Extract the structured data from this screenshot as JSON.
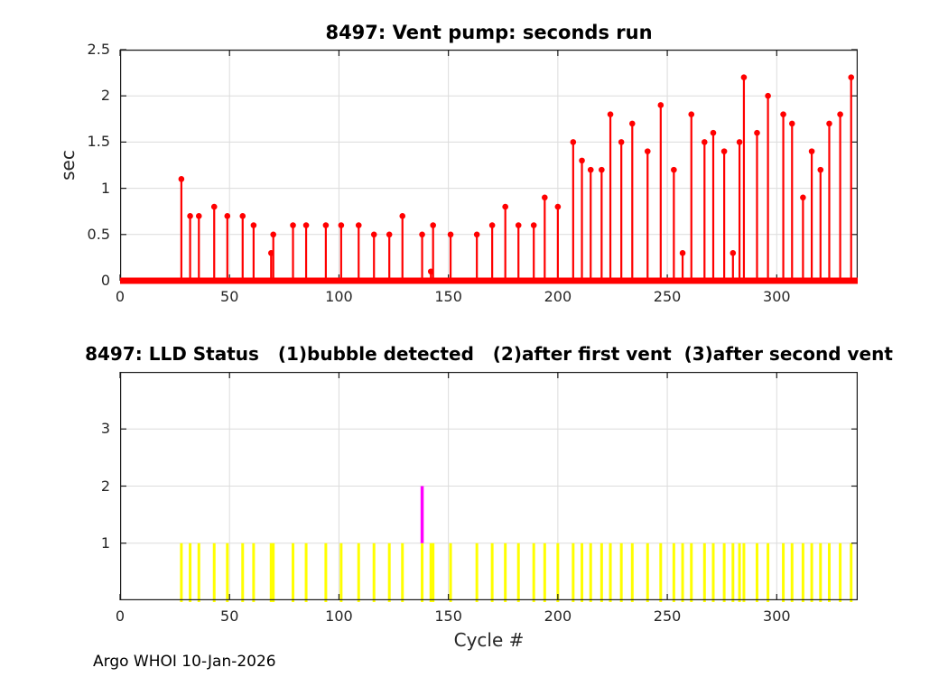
{
  "figure": {
    "background": "#ffffff",
    "footer": "Argo WHOI 10-Jan-2026"
  },
  "axis_style": {
    "box_color": "#1a1a1a",
    "tick_color": "#1a1a1a",
    "grid_color": "#dcdcdc",
    "label_color": "#262626",
    "tick_length": 7
  },
  "chart_data": [
    {
      "type": "stem",
      "title": "8497: Vent pump: seconds run",
      "ylabel": "sec",
      "xlabel": "",
      "xlim": [
        0,
        337
      ],
      "ylim": [
        0,
        2.5
      ],
      "xticks": [
        0,
        50,
        100,
        150,
        200,
        250,
        300
      ],
      "xtick_labels": [
        "0",
        "50",
        "100",
        "150",
        "200",
        "250",
        "300"
      ],
      "yticks": [
        0,
        0.5,
        1,
        1.5,
        2,
        2.5
      ],
      "ytick_labels": [
        "0",
        "0.5",
        "1",
        "1.5",
        "2",
        "2.5"
      ],
      "grid": true,
      "stem_color": "#ff0000",
      "zero_baseline": true,
      "points": [
        [
          28,
          1.1
        ],
        [
          32,
          0.7
        ],
        [
          36,
          0.7
        ],
        [
          43,
          0.8
        ],
        [
          49,
          0.7
        ],
        [
          56,
          0.7
        ],
        [
          61,
          0.6
        ],
        [
          69,
          0.3
        ],
        [
          70,
          0.5
        ],
        [
          79,
          0.6
        ],
        [
          85,
          0.6
        ],
        [
          94,
          0.6
        ],
        [
          101,
          0.6
        ],
        [
          109,
          0.6
        ],
        [
          116,
          0.5
        ],
        [
          123,
          0.5
        ],
        [
          129,
          0.7
        ],
        [
          138,
          0.5
        ],
        [
          142,
          0.1
        ],
        [
          143,
          0.6
        ],
        [
          151,
          0.5
        ],
        [
          163,
          0.5
        ],
        [
          170,
          0.6
        ],
        [
          176,
          0.8
        ],
        [
          182,
          0.6
        ],
        [
          189,
          0.6
        ],
        [
          194,
          0.9
        ],
        [
          200,
          0.8
        ],
        [
          207,
          1.5
        ],
        [
          211,
          1.3
        ],
        [
          215,
          1.2
        ],
        [
          220,
          1.2
        ],
        [
          224,
          1.8
        ],
        [
          229,
          1.5
        ],
        [
          234,
          1.7
        ],
        [
          241,
          1.4
        ],
        [
          247,
          1.9
        ],
        [
          253,
          1.2
        ],
        [
          257,
          0.3
        ],
        [
          261,
          1.8
        ],
        [
          267,
          1.5
        ],
        [
          271,
          1.6
        ],
        [
          276,
          1.4
        ],
        [
          280,
          0.3
        ],
        [
          283,
          1.5
        ],
        [
          285,
          2.2
        ],
        [
          291,
          1.6
        ],
        [
          296,
          2.0
        ],
        [
          303,
          1.8
        ],
        [
          307,
          1.7
        ],
        [
          312,
          0.9
        ],
        [
          316,
          1.4
        ],
        [
          320,
          1.2
        ],
        [
          324,
          1.7
        ],
        [
          329,
          1.8
        ],
        [
          334,
          2.2
        ]
      ]
    },
    {
      "type": "status_bars",
      "title": "8497: LLD Status   (1)bubble detected   (2)after first vent  (3)after second vent",
      "ylabel": "",
      "xlabel": "Cycle #",
      "xlim": [
        0,
        337
      ],
      "ylim": [
        0,
        4
      ],
      "xticks": [
        0,
        50,
        100,
        150,
        200,
        250,
        300
      ],
      "xtick_labels": [
        "0",
        "50",
        "100",
        "150",
        "200",
        "250",
        "300"
      ],
      "yticks": [
        1,
        2,
        3
      ],
      "ytick_labels": [
        "1",
        "2",
        "3"
      ],
      "grid": true,
      "status_colors": {
        "1": "#ffff00",
        "2": "#ff00ff"
      },
      "bars": [
        [
          28,
          1
        ],
        [
          32,
          1
        ],
        [
          36,
          1
        ],
        [
          43,
          1
        ],
        [
          49,
          1
        ],
        [
          56,
          1
        ],
        [
          61,
          1
        ],
        [
          69,
          1
        ],
        [
          70,
          1
        ],
        [
          79,
          1
        ],
        [
          85,
          1
        ],
        [
          94,
          1
        ],
        [
          101,
          1
        ],
        [
          109,
          1
        ],
        [
          116,
          1
        ],
        [
          123,
          1
        ],
        [
          129,
          1
        ],
        [
          138,
          2
        ],
        [
          142,
          1
        ],
        [
          143,
          1
        ],
        [
          151,
          1
        ],
        [
          163,
          1
        ],
        [
          170,
          1
        ],
        [
          176,
          1
        ],
        [
          182,
          1
        ],
        [
          189,
          1
        ],
        [
          194,
          1
        ],
        [
          200,
          1
        ],
        [
          207,
          1
        ],
        [
          211,
          1
        ],
        [
          215,
          1
        ],
        [
          220,
          1
        ],
        [
          224,
          1
        ],
        [
          229,
          1
        ],
        [
          234,
          1
        ],
        [
          241,
          1
        ],
        [
          247,
          1
        ],
        [
          253,
          1
        ],
        [
          257,
          1
        ],
        [
          261,
          1
        ],
        [
          267,
          1
        ],
        [
          271,
          1
        ],
        [
          276,
          1
        ],
        [
          280,
          1
        ],
        [
          283,
          1
        ],
        [
          285,
          1
        ],
        [
          291,
          1
        ],
        [
          296,
          1
        ],
        [
          303,
          1
        ],
        [
          307,
          1
        ],
        [
          312,
          1
        ],
        [
          316,
          1
        ],
        [
          320,
          1
        ],
        [
          324,
          1
        ],
        [
          329,
          1
        ],
        [
          334,
          1
        ]
      ]
    }
  ]
}
